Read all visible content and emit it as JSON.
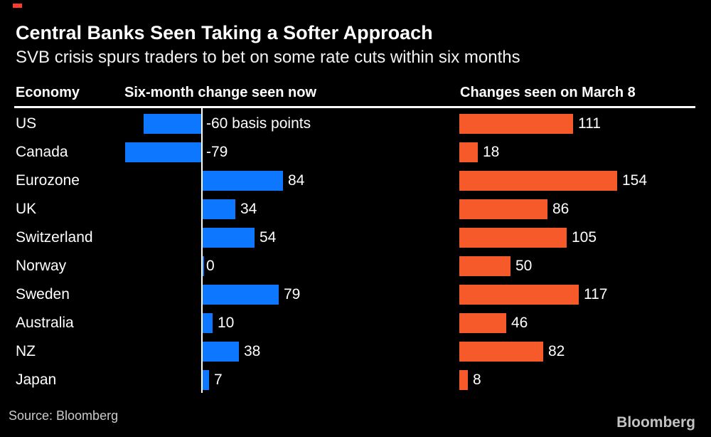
{
  "header": {
    "title": "Central Banks Seen Taking a Softer Approach",
    "subtitle": "SVB crisis spurs traders to bet on some rate cuts within six months"
  },
  "columns": {
    "economy": "Economy",
    "now": "Six-month change seen now",
    "march8": "Changes seen on March 8"
  },
  "footer": {
    "source": "Source: Bloomberg",
    "logo": "Bloomberg"
  },
  "palette": {
    "background": "#000000",
    "blue": "#0d77ff",
    "orange": "#f75a2a",
    "text": "#ffffff",
    "muted_text": "#cbcbcb",
    "rule": "#ffffff",
    "red_tick": "#ff3a30"
  },
  "chart_data": {
    "type": "bar",
    "orientation": "horizontal",
    "title": "Central Banks Seen Taking a Softer Approach",
    "subtitle": "SVB crisis spurs traders to bet on some rate cuts within six months",
    "unit": "basis points",
    "zero_baseline_shown_for": "Six-month change seen now",
    "categories": [
      "US",
      "Canada",
      "Eurozone",
      "UK",
      "Switzerland",
      "Norway",
      "Sweden",
      "Australia",
      "NZ",
      "Japan"
    ],
    "series": [
      {
        "name": "Six-month change seen now",
        "color": "#0d77ff",
        "values": [
          -60,
          -79,
          84,
          34,
          54,
          0,
          79,
          10,
          38,
          7
        ],
        "value_labels": [
          "-60 basis points",
          "-79",
          "84",
          "34",
          "54",
          "0",
          "79",
          "10",
          "38",
          "7"
        ]
      },
      {
        "name": "Changes seen on March 8",
        "color": "#f75a2a",
        "values": [
          111,
          18,
          154,
          86,
          105,
          50,
          117,
          46,
          82,
          8
        ],
        "value_labels": [
          "111",
          "18",
          "154",
          "86",
          "105",
          "50",
          "117",
          "46",
          "82",
          "8"
        ]
      }
    ],
    "legend": "none",
    "grid": "off",
    "source": "Source: Bloomberg"
  }
}
